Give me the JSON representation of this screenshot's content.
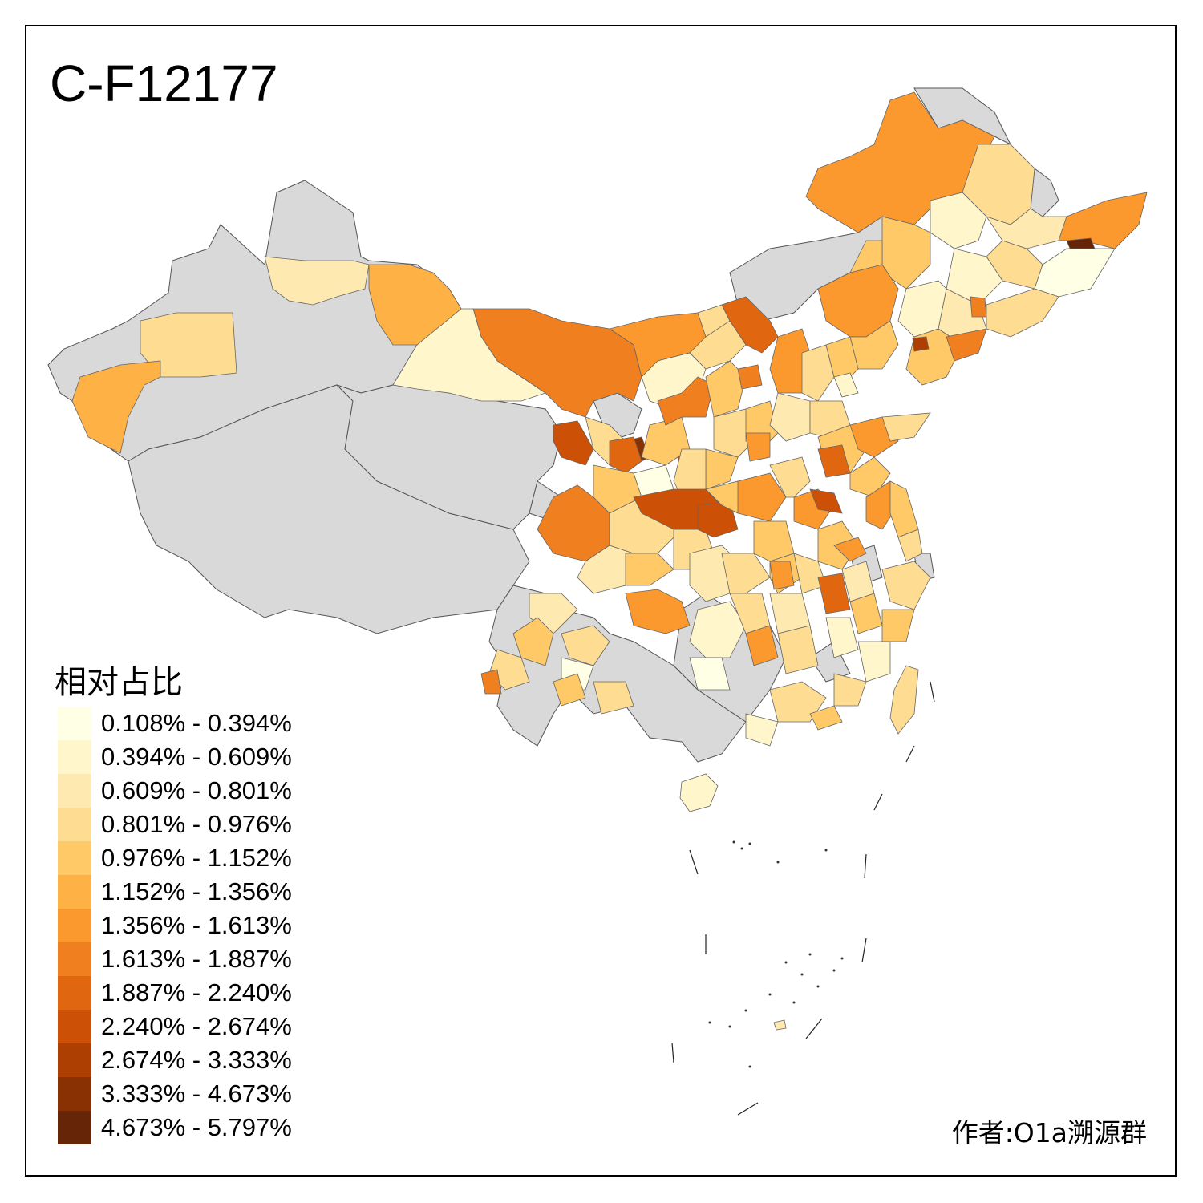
{
  "title": "C-F12177",
  "legend": {
    "title": "相对占比",
    "bins": [
      {
        "label": "0.108% - 0.394%",
        "color": "#ffffe5"
      },
      {
        "label": "0.394% - 0.609%",
        "color": "#fff6cc"
      },
      {
        "label": "0.609% - 0.801%",
        "color": "#feeab0"
      },
      {
        "label": "0.801% - 0.976%",
        "color": "#fedd92"
      },
      {
        "label": "0.976% - 1.152%",
        "color": "#fec966"
      },
      {
        "label": "1.152% - 1.356%",
        "color": "#feb144"
      },
      {
        "label": "1.356% - 1.613%",
        "color": "#fb982e"
      },
      {
        "label": "1.613% - 1.887%",
        "color": "#f07f20"
      },
      {
        "label": "1.887% - 2.240%",
        "color": "#e0660f"
      },
      {
        "label": "2.240% - 2.674%",
        "color": "#cc5005"
      },
      {
        "label": "2.674% - 3.333%",
        "color": "#ad3f03"
      },
      {
        "label": "3.333% - 4.673%",
        "color": "#8a3104"
      },
      {
        "label": "4.673% - 5.797%",
        "color": "#662506"
      }
    ]
  },
  "credit": "作者:O1a溯源群",
  "colors": {
    "no_data": "#d9d9d9",
    "border": "#444444"
  }
}
